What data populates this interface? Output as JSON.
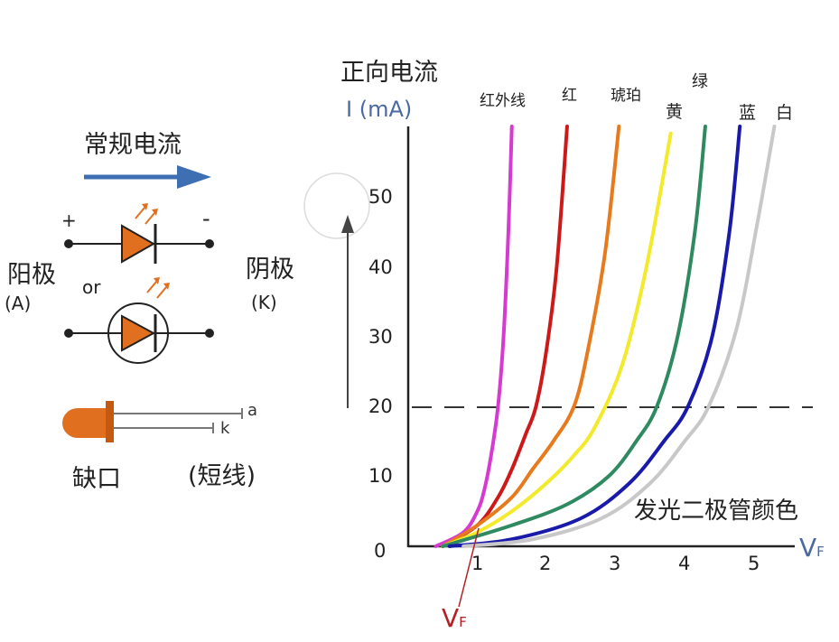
{
  "left": {
    "current_title": "常规电流",
    "plus": "+",
    "minus": "-",
    "anode": "阳极",
    "anode_sub": "(A)",
    "or_label": "or",
    "cathode": "阴极",
    "cathode_sub": "(K)",
    "lead_a": "a",
    "lead_k": "k",
    "notch": "缺口",
    "short_lead": "(短线)"
  },
  "chart": {
    "ytitle": "正向电流",
    "yunit": "I (mA)",
    "xlabel": "V",
    "xlabel_sub": "F",
    "vf_label": "V",
    "vf_sub": "F",
    "legend_title": "发光二极管颜色",
    "origin": "0",
    "yticks": [
      "10",
      "20",
      "30",
      "40",
      "50"
    ],
    "xticks": [
      "1",
      "2",
      "3",
      "4",
      "5"
    ]
  },
  "chart_data": {
    "type": "line",
    "xlabel": "V",
    "ylabel": "I (mA)",
    "xlim": [
      0,
      5.6
    ],
    "ylim": [
      0,
      60
    ],
    "reference_line_y": 20,
    "series": [
      {
        "name": "红外线",
        "color": "#d63ad0",
        "x": [
          0.4,
          0.8,
          1.0,
          1.1,
          1.2,
          1.3,
          1.38,
          1.45,
          1.5
        ],
        "y": [
          0,
          2,
          5,
          8,
          13,
          20,
          30,
          45,
          60
        ]
      },
      {
        "name": "红",
        "color": "#cc1a1a",
        "x": [
          0.5,
          1.0,
          1.3,
          1.5,
          1.7,
          1.85,
          2.0,
          2.15,
          2.3
        ],
        "y": [
          0,
          3,
          7,
          11,
          16,
          20,
          28,
          40,
          60
        ]
      },
      {
        "name": "琥珀",
        "color": "#e87a1e",
        "x": [
          0.5,
          1.0,
          1.5,
          1.8,
          2.1,
          2.4,
          2.6,
          2.85,
          3.05
        ],
        "y": [
          0,
          3,
          7,
          11,
          15,
          20,
          28,
          42,
          60
        ]
      },
      {
        "name": "黄",
        "color": "#f2ea2a",
        "x": [
          0.5,
          1.0,
          1.5,
          2.0,
          2.4,
          2.7,
          3.1,
          3.45,
          3.8
        ],
        "y": [
          0,
          2,
          5,
          9,
          13,
          17,
          26,
          40,
          59
        ]
      },
      {
        "name": "绿",
        "color": "#2f8a62",
        "x": [
          0.5,
          1.5,
          2.3,
          2.9,
          3.3,
          3.6,
          3.9,
          4.15,
          4.3
        ],
        "y": [
          0,
          3,
          6,
          10,
          15,
          20,
          30,
          45,
          60
        ]
      },
      {
        "name": "蓝",
        "color": "#1a1aaa",
        "x": [
          0.6,
          1.5,
          2.5,
          3.2,
          3.7,
          4.05,
          4.4,
          4.65,
          4.8
        ],
        "y": [
          0,
          1,
          4,
          9,
          15,
          20,
          30,
          45,
          60
        ]
      },
      {
        "name": "白",
        "color": "#c8c8c8",
        "x": [
          0.8,
          1.8,
          2.8,
          3.5,
          4.0,
          4.35,
          4.75,
          5.05,
          5.3
        ],
        "y": [
          0,
          1,
          4,
          9,
          15,
          20,
          31,
          46,
          60
        ]
      }
    ]
  },
  "colors": {
    "arrow_blue": "#3f6fb3",
    "diode_orange": "#e07020",
    "vf_red": "#b52025"
  }
}
